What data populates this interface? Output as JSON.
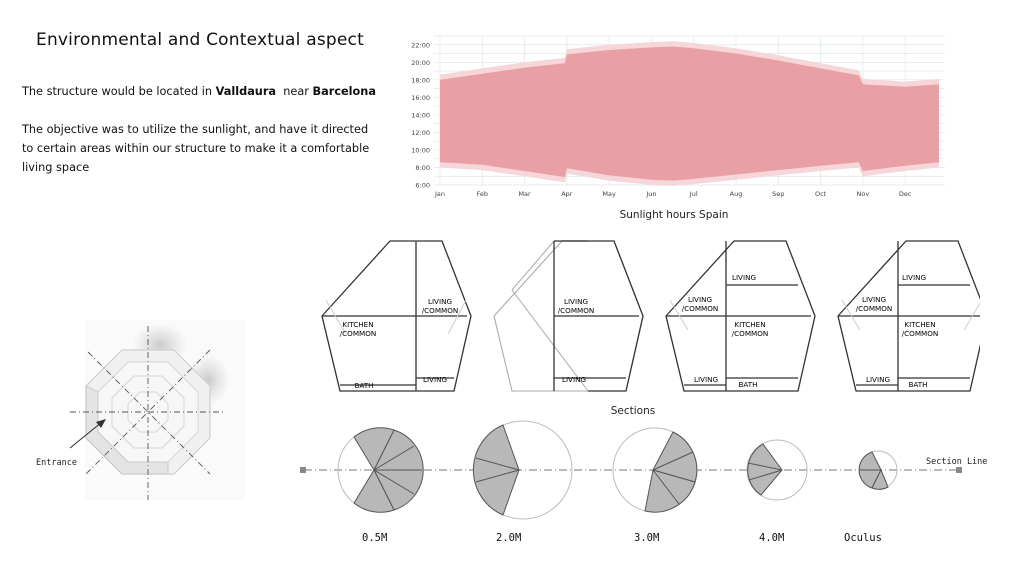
{
  "heading": "Environmental and Contextual aspect",
  "intro": {
    "prefix": "The structure would be located in ",
    "place": "Valldaura",
    "middle": "  near ",
    "city": "Barcelona"
  },
  "objective": "The objective was to utilize the sunlight, and have it directed to certain areas within our structure to make it a comfortable living space",
  "chart_data": {
    "type": "area",
    "caption": "Sunlight hours Spain",
    "y_ticks": [
      "22:00",
      "20:00",
      "18:00",
      "16:00",
      "14:00",
      "12:00",
      "10:00",
      "8:00",
      "6:00"
    ],
    "x_ticks": [
      "Jan",
      "Feb",
      "Mar",
      "Apr",
      "May",
      "Jun",
      "Jul",
      "Aug",
      "Sep",
      "Oct",
      "Nov",
      "Dec"
    ],
    "ylim": [
      6,
      23
    ],
    "colors": {
      "daylight": "#e8a0a5",
      "twilight": "#f6d6d8",
      "grid": "#dde6ea"
    },
    "series": [
      {
        "x": [
          0,
          1,
          2,
          2.95,
          3,
          4,
          5,
          5.5,
          6,
          7,
          8,
          9,
          9.9,
          10,
          11,
          11.8
        ],
        "sunrise": [
          8.6,
          8.3,
          7.6,
          6.9,
          7.9,
          7.1,
          6.6,
          6.5,
          6.7,
          7.2,
          7.7,
          8.2,
          8.6,
          7.6,
          8.2,
          8.6
        ],
        "sunset": [
          18.0,
          18.7,
          19.4,
          19.9,
          20.9,
          21.4,
          21.7,
          21.8,
          21.6,
          21.0,
          20.2,
          19.3,
          18.5,
          17.5,
          17.2,
          17.5
        ]
      }
    ]
  },
  "plans": {
    "labels": {
      "living_common_a": "LIVING",
      "living_common_b": "/COMMON",
      "kitchen_a": "KITCHEN",
      "kitchen_b": "/COMMON",
      "bath": "BATH",
      "living": "LIVING"
    },
    "caption": "Sections"
  },
  "site": {
    "entrance": "Entrance"
  },
  "sections": {
    "line_label": "Section Line",
    "items": [
      {
        "label": "0.5M"
      },
      {
        "label": "2.0M"
      },
      {
        "label": "3.0M"
      },
      {
        "label": "4.0M"
      },
      {
        "label": "Oculus"
      }
    ]
  }
}
